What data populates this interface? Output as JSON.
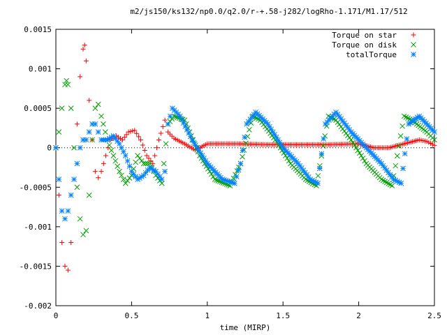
{
  "chart_data": {
    "type": "scatter",
    "title": "m2/js150/ks132/np0.0/q2.0/r-+.58-j282/logRho-1.171/M1.17/512",
    "xlabel": "time (MIRP)",
    "ylabel": "",
    "xlim": [
      0,
      2.5
    ],
    "ylim": [
      -0.002,
      0.0015
    ],
    "xticks": [
      0,
      0.5,
      1,
      1.5,
      2,
      2.5
    ],
    "xtick_labels": [
      "0",
      "0.5",
      "1",
      "1.5",
      "2",
      "2.5"
    ],
    "yticks": [
      -0.002,
      -0.0015,
      -0.001,
      -0.0005,
      0,
      0.0005,
      0.001,
      0.0015
    ],
    "ytick_labels": [
      "-0.002",
      "-0.0015",
      "-0.001",
      "-0.0005",
      "0",
      "0.0005",
      "0.001",
      "0.0015"
    ],
    "grid": false,
    "legend_position": "top-right",
    "series": [
      {
        "name": "Torque on star",
        "marker": "+",
        "color": "#ff0000",
        "x": [
          0.0,
          0.02,
          0.04,
          0.06,
          0.08,
          0.1,
          0.12,
          0.14,
          0.16,
          0.18,
          0.19,
          0.2,
          0.22,
          0.24,
          0.26,
          0.28,
          0.3,
          0.33,
          0.36,
          0.4,
          0.44,
          0.48,
          0.52,
          0.56,
          0.6,
          0.64,
          0.68,
          0.72,
          0.74,
          0.78,
          0.85,
          0.92,
          1.0,
          1.2,
          1.4,
          1.6,
          1.8,
          2.0,
          2.1,
          2.2,
          2.3,
          2.4,
          2.45,
          2.5
        ],
        "y": [
          0.0,
          -0.0006,
          -0.0012,
          -0.0015,
          -0.00155,
          -0.0012,
          -0.0004,
          0.0003,
          0.0009,
          0.00125,
          0.0013,
          0.0011,
          0.0006,
          0.0001,
          -0.0003,
          -0.00038,
          -0.0003,
          -0.0001,
          0.0001,
          0.00015,
          0.0001,
          0.0002,
          0.00022,
          0.0001,
          -0.0001,
          -0.0002,
          0.0001,
          0.00035,
          0.0002,
          0.00012,
          5e-05,
          -3e-05,
          5e-05,
          5e-05,
          4e-05,
          4e-05,
          4e-05,
          5e-05,
          0.0,
          0.0,
          5e-05,
          0.0001,
          8e-05,
          3e-05
        ]
      },
      {
        "name": "Torque on disk",
        "marker": "x",
        "color": "#00a000",
        "x": [
          0.0,
          0.02,
          0.04,
          0.06,
          0.07,
          0.08,
          0.1,
          0.12,
          0.14,
          0.16,
          0.18,
          0.2,
          0.22,
          0.24,
          0.26,
          0.28,
          0.3,
          0.34,
          0.38,
          0.42,
          0.46,
          0.5,
          0.54,
          0.58,
          0.62,
          0.66,
          0.7,
          0.74,
          0.78,
          0.85,
          0.95,
          1.05,
          1.15,
          1.22,
          1.3,
          1.35,
          1.45,
          1.55,
          1.65,
          1.72,
          1.8,
          1.85,
          1.95,
          2.05,
          2.15,
          2.22,
          2.3,
          2.35,
          2.45,
          2.5
        ],
        "y": [
          0.0,
          0.0002,
          0.0005,
          0.0008,
          0.00085,
          0.0008,
          0.0005,
          0.0,
          -0.0005,
          -0.0009,
          -0.0011,
          -0.00105,
          -0.0006,
          0.0001,
          0.0005,
          0.00055,
          0.0004,
          0.0001,
          -0.0001,
          -0.0003,
          -0.00045,
          -0.00035,
          -0.0001,
          -0.0002,
          -0.0002,
          -0.00035,
          -0.00045,
          0.0003,
          0.0004,
          0.00035,
          -0.0001,
          -0.0004,
          -0.00048,
          -0.0002,
          0.0004,
          0.00035,
          0.0001,
          -0.0002,
          -0.0004,
          -0.00048,
          0.0004,
          0.00035,
          0.0001,
          -0.0002,
          -0.0004,
          -0.00048,
          0.0004,
          0.00035,
          0.0002,
          0.0001
        ]
      },
      {
        "name": "totalTorque",
        "marker": "*",
        "color": "#0080ff",
        "x": [
          0.0,
          0.02,
          0.04,
          0.06,
          0.08,
          0.1,
          0.12,
          0.14,
          0.16,
          0.18,
          0.2,
          0.22,
          0.24,
          0.26,
          0.28,
          0.3,
          0.34,
          0.38,
          0.42,
          0.46,
          0.5,
          0.54,
          0.58,
          0.62,
          0.66,
          0.7,
          0.72,
          0.74,
          0.77,
          0.82,
          0.9,
          1.0,
          1.1,
          1.18,
          1.22,
          1.26,
          1.32,
          1.4,
          1.5,
          1.6,
          1.68,
          1.73,
          1.78,
          1.85,
          1.95,
          2.05,
          2.15,
          2.23,
          2.28,
          2.33,
          2.4,
          2.5
        ],
        "y": [
          0.0,
          -0.0004,
          -0.0008,
          -0.0009,
          -0.0008,
          -0.0006,
          -0.0004,
          -0.0002,
          0.0,
          0.0001,
          0.0001,
          0.0002,
          0.0003,
          0.0003,
          0.0002,
          0.0001,
          0.0001,
          0.00015,
          5e-05,
          -0.0001,
          -0.0003,
          -0.0004,
          -0.00035,
          -0.00025,
          -0.0003,
          -0.0004,
          -0.0003,
          0.0003,
          0.0005,
          0.0004,
          0.0001,
          -0.0002,
          -0.0004,
          -0.00045,
          -0.0002,
          0.0003,
          0.00045,
          0.0003,
          0.0,
          -0.0002,
          -0.0004,
          -0.00045,
          0.0003,
          0.00045,
          0.0002,
          0.0,
          -0.0002,
          -0.0004,
          -0.00045,
          0.0003,
          0.0004,
          0.0002
        ]
      }
    ]
  }
}
